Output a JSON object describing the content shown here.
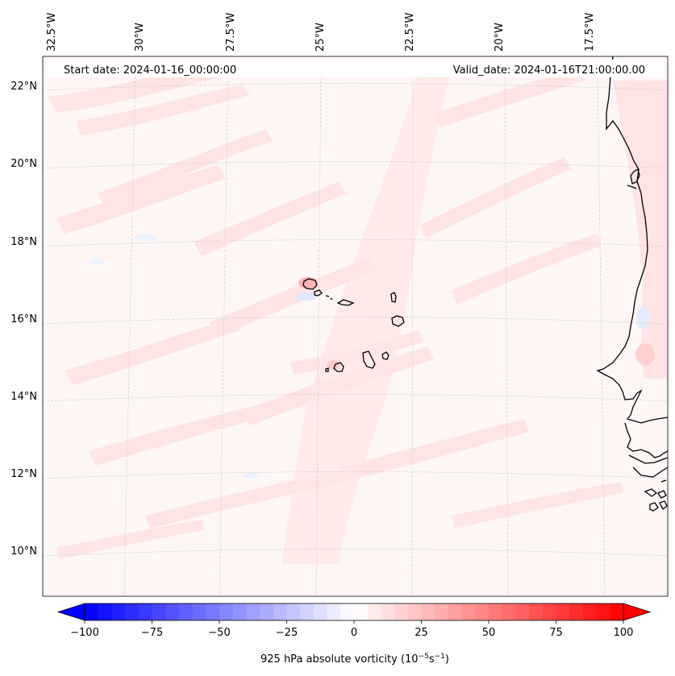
{
  "header": {
    "start_date": "Start date: 2024-01-16_00:00:00",
    "valid_date": "Valid_date: 2024-01-16T21:00:00.00"
  },
  "longitude_labels": [
    "32.5°W",
    "30°W",
    "27.5°W",
    "25°W",
    "22.5°W",
    "20°W",
    "17.5°W"
  ],
  "latitude_labels": [
    "22°N",
    "20°N",
    "18°N",
    "16°N",
    "14°N",
    "12°N",
    "10°N"
  ],
  "colorbar": {
    "ticks": [
      "−100",
      "−75",
      "−50",
      "−25",
      "0",
      "25",
      "50",
      "75",
      "100"
    ],
    "label_prefix": "925 hPa absolute vorticity (10",
    "label_exp1": "−5",
    "label_mid": "s",
    "label_exp2": "−1",
    "label_suffix": ")",
    "range": [
      -100,
      100
    ],
    "colormap": "bwr",
    "neg_color": "#0000ff",
    "zero_color": "#ffffff",
    "pos_color": "#ff0000"
  },
  "map": {
    "field": "925 hPa absolute vorticity",
    "region": "Cape Verde Islands and West African coast",
    "lon_range": [
      -32.5,
      -17.5
    ],
    "lat_range": [
      9,
      22.5
    ],
    "gridlines": "dashed"
  }
}
